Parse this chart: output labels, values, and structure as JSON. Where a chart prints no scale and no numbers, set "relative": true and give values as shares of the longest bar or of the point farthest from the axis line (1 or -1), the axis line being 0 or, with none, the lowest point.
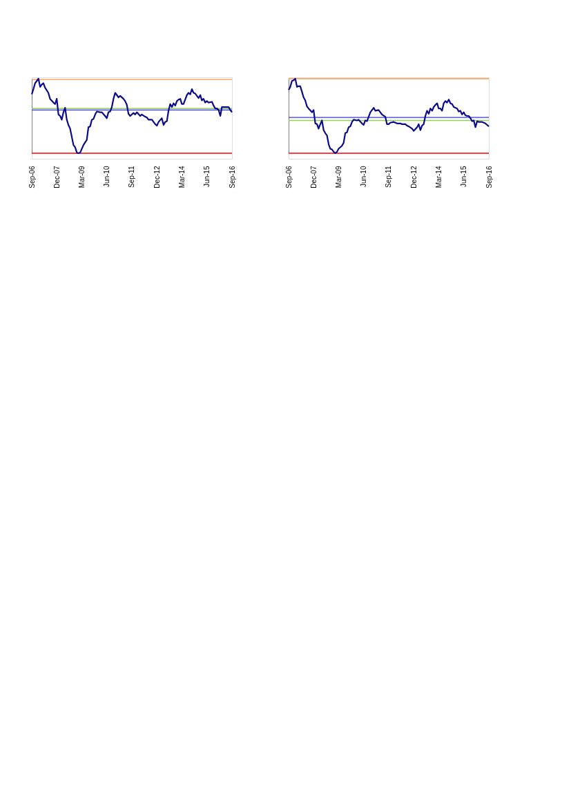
{
  "chart_data": [
    {
      "type": "line",
      "relative": true,
      "grid": false,
      "legend": false,
      "marker": "none",
      "line_style": "solid",
      "xlim": [
        "2006-09",
        "2016-09"
      ],
      "xticks": [
        {
          "value": "2006-09",
          "label": "Sep-06"
        },
        {
          "value": "2007-12",
          "label": "Dec-07"
        },
        {
          "value": "2009-03",
          "label": "Mar-09"
        },
        {
          "value": "2010-06",
          "label": "Jun-10"
        },
        {
          "value": "2011-09",
          "label": "Sep-11"
        },
        {
          "value": "2012-12",
          "label": "Dec-12"
        },
        {
          "value": "2014-03",
          "label": "Mar-14"
        },
        {
          "value": "2015-06",
          "label": "Jun-15"
        },
        {
          "value": "2016-09",
          "label": "Sep-16"
        }
      ],
      "x": [
        "2006-09",
        "2006-10",
        "2006-11",
        "2007-01",
        "2007-02",
        "2007-03",
        "2007-04",
        "2007-05",
        "2007-07",
        "2007-08",
        "2007-10",
        "2007-11",
        "2007-12",
        "2008-01",
        "2008-02",
        "2008-03",
        "2008-04",
        "2008-05",
        "2008-06",
        "2008-07",
        "2008-08",
        "2008-10",
        "2008-11",
        "2008-12",
        "2009-01",
        "2009-02",
        "2009-04",
        "2009-06",
        "2009-07",
        "2009-08",
        "2009-09",
        "2009-10",
        "2009-11",
        "2009-12",
        "2010-02",
        "2010-03",
        "2010-05",
        "2010-06",
        "2010-07",
        "2010-08",
        "2010-09",
        "2010-10",
        "2010-11",
        "2011-01",
        "2011-02",
        "2011-04",
        "2011-05",
        "2011-06",
        "2011-07",
        "2011-08",
        "2011-10",
        "2011-11",
        "2011-12",
        "2012-02",
        "2012-03",
        "2012-05",
        "2012-06",
        "2012-07",
        "2012-09",
        "2012-10",
        "2012-11",
        "2012-12",
        "2013-01",
        "2013-03",
        "2013-04",
        "2013-05",
        "2013-06",
        "2013-07",
        "2013-08",
        "2013-09",
        "2013-10",
        "2013-11",
        "2013-12",
        "2014-01",
        "2014-02",
        "2014-03",
        "2014-04",
        "2014-06",
        "2014-07",
        "2014-08",
        "2014-09",
        "2014-10",
        "2014-11",
        "2015-01",
        "2015-02",
        "2015-03",
        "2015-04",
        "2015-05",
        "2015-06",
        "2015-07",
        "2015-09",
        "2015-10",
        "2015-11",
        "2015-12",
        "2016-01",
        "2016-02",
        "2016-03",
        "2016-04",
        "2016-06",
        "2016-07",
        "2016-08",
        "2016-09"
      ],
      "series": [
        {
          "color": "#0a0a8c",
          "values": [
            0.79,
            0.86,
            0.94,
            1.0,
            0.89,
            0.92,
            0.94,
            0.88,
            0.81,
            0.73,
            0.68,
            0.66,
            0.73,
            0.52,
            0.5,
            0.45,
            0.55,
            0.61,
            0.45,
            0.38,
            0.33,
            0.11,
            0.08,
            0.01,
            0,
            0.01,
            0.11,
            0.18,
            0.35,
            0.36,
            0.45,
            0.46,
            0.52,
            0.56,
            0.55,
            0.55,
            0.5,
            0.47,
            0.55,
            0.56,
            0.62,
            0.73,
            0.81,
            0.75,
            0.77,
            0.73,
            0.7,
            0.65,
            0.53,
            0.5,
            0.54,
            0.52,
            0.55,
            0.5,
            0.52,
            0.49,
            0.48,
            0.45,
            0.45,
            0.42,
            0.39,
            0.37,
            0.42,
            0.47,
            0.38,
            0.42,
            0.43,
            0.57,
            0.66,
            0.62,
            0.67,
            0.64,
            0.7,
            0.72,
            0.73,
            0.66,
            0.66,
            0.78,
            0.81,
            0.79,
            0.86,
            0.81,
            0.8,
            0.74,
            0.78,
            0.71,
            0.73,
            0.68,
            0.7,
            0.68,
            0.69,
            0.64,
            0.6,
            0.6,
            0.58,
            0.5,
            0.62,
            0.62,
            0.62,
            0.62,
            0.58,
            0.55
          ]
        }
      ],
      "ref_lines": [
        {
          "axis": "y",
          "value": 0.99,
          "color": "#f79646"
        },
        {
          "axis": "y",
          "value": 0.6,
          "color": "#92d050"
        },
        {
          "axis": "y",
          "value": 0.58,
          "color": "#3333ff"
        },
        {
          "axis": "y",
          "value": 0,
          "color": "#ff0000"
        }
      ]
    },
    {
      "type": "line",
      "relative": true,
      "grid": false,
      "legend": false,
      "marker": "none",
      "line_style": "solid",
      "xlim": [
        "2006-09",
        "2016-09"
      ],
      "xticks": [
        {
          "value": "2006-09",
          "label": "Sep-06"
        },
        {
          "value": "2007-12",
          "label": "Dec-07"
        },
        {
          "value": "2009-03",
          "label": "Mar-09"
        },
        {
          "value": "2010-06",
          "label": "Jun-10"
        },
        {
          "value": "2011-09",
          "label": "Sep-11"
        },
        {
          "value": "2012-12",
          "label": "Dec-12"
        },
        {
          "value": "2014-03",
          "label": "Mar-14"
        },
        {
          "value": "2015-06",
          "label": "Jun-15"
        },
        {
          "value": "2016-09",
          "label": "Sep-16"
        }
      ],
      "x": [
        "2006-09",
        "2006-10",
        "2006-11",
        "2006-12",
        "2007-01",
        "2007-02",
        "2007-03",
        "2007-04",
        "2007-05",
        "2007-06",
        "2007-07",
        "2007-08",
        "2007-09",
        "2007-11",
        "2007-12",
        "2008-01",
        "2008-02",
        "2008-03",
        "2008-04",
        "2008-05",
        "2008-06",
        "2008-07",
        "2008-08",
        "2008-09",
        "2008-10",
        "2008-11",
        "2008-12",
        "2009-01",
        "2009-02",
        "2009-03",
        "2009-05",
        "2009-06",
        "2009-07",
        "2009-08",
        "2009-09",
        "2009-10",
        "2009-11",
        "2009-12",
        "2010-02",
        "2010-03",
        "2010-05",
        "2010-06",
        "2010-07",
        "2010-08",
        "2010-10",
        "2010-12",
        "2011-01",
        "2011-03",
        "2011-04",
        "2011-05",
        "2011-07",
        "2011-08",
        "2011-09",
        "2011-10",
        "2011-12",
        "2012-01",
        "2012-02",
        "2012-04",
        "2012-05",
        "2012-07",
        "2012-08",
        "2012-09",
        "2012-11",
        "2012-12",
        "2013-02",
        "2013-03",
        "2013-04",
        "2013-05",
        "2013-06",
        "2013-07",
        "2013-08",
        "2013-09",
        "2013-10",
        "2013-11",
        "2013-12",
        "2014-01",
        "2014-02",
        "2014-03",
        "2014-04",
        "2014-05",
        "2014-06",
        "2014-07",
        "2014-08",
        "2014-09",
        "2014-10",
        "2014-11",
        "2014-12",
        "2015-02",
        "2015-03",
        "2015-04",
        "2015-05",
        "2015-06",
        "2015-07",
        "2015-08",
        "2015-09",
        "2015-10",
        "2015-11",
        "2015-12",
        "2016-01",
        "2016-02",
        "2016-03",
        "2016-05",
        "2016-06",
        "2016-07",
        "2016-08",
        "2016-09"
      ],
      "series": [
        {
          "color": "#0a0a8c",
          "values": [
            0.85,
            0.89,
            0.97,
            0.98,
            1.0,
            0.89,
            0.9,
            0.9,
            0.83,
            0.75,
            0.71,
            0.63,
            0.6,
            0.55,
            0.58,
            0.4,
            0.39,
            0.33,
            0.39,
            0.44,
            0.31,
            0.27,
            0.24,
            0.12,
            0.06,
            0.05,
            0.02,
            0,
            0.02,
            0.06,
            0.1,
            0.14,
            0.27,
            0.28,
            0.35,
            0.36,
            0.42,
            0.45,
            0.44,
            0.45,
            0.4,
            0.38,
            0.44,
            0.43,
            0.55,
            0.61,
            0.57,
            0.58,
            0.55,
            0.52,
            0.49,
            0.39,
            0.39,
            0.41,
            0.42,
            0.41,
            0.4,
            0.4,
            0.39,
            0.39,
            0.37,
            0.36,
            0.33,
            0.3,
            0.35,
            0.39,
            0.31,
            0.37,
            0.39,
            0.5,
            0.57,
            0.53,
            0.6,
            0.57,
            0.62,
            0.65,
            0.67,
            0.6,
            0.6,
            0.57,
            0.67,
            0.7,
            0.68,
            0.72,
            0.67,
            0.66,
            0.62,
            0.6,
            0.56,
            0.57,
            0.52,
            0.55,
            0.51,
            0.5,
            0.5,
            0.47,
            0.43,
            0.44,
            0.35,
            0.43,
            0.42,
            0.42,
            0.41,
            0.4,
            0.38,
            0.36
          ]
        }
      ],
      "ref_lines": [
        {
          "axis": "y",
          "value": 1.0,
          "color": "#f79646"
        },
        {
          "axis": "y",
          "value": 0.48,
          "color": "#3333ff"
        },
        {
          "axis": "y",
          "value": 0.44,
          "color": "#92d050"
        },
        {
          "axis": "y",
          "value": 0,
          "color": "#ff0000"
        }
      ]
    }
  ]
}
